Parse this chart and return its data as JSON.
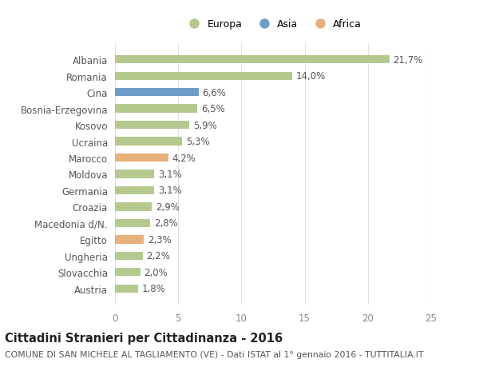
{
  "categories": [
    "Albania",
    "Romania",
    "Cina",
    "Bosnia-Erzegovina",
    "Kosovo",
    "Ucraina",
    "Marocco",
    "Moldova",
    "Germania",
    "Croazia",
    "Macedonia d/N.",
    "Egitto",
    "Ungheria",
    "Slovacchia",
    "Austria"
  ],
  "values": [
    21.7,
    14.0,
    6.6,
    6.5,
    5.9,
    5.3,
    4.2,
    3.1,
    3.1,
    2.9,
    2.8,
    2.3,
    2.2,
    2.0,
    1.8
  ],
  "labels": [
    "21,7%",
    "14,0%",
    "6,6%",
    "6,5%",
    "5,9%",
    "5,3%",
    "4,2%",
    "3,1%",
    "3,1%",
    "2,9%",
    "2,8%",
    "2,3%",
    "2,2%",
    "2,0%",
    "1,8%"
  ],
  "continents": [
    "Europa",
    "Europa",
    "Asia",
    "Europa",
    "Europa",
    "Europa",
    "Africa",
    "Europa",
    "Europa",
    "Europa",
    "Europa",
    "Africa",
    "Europa",
    "Europa",
    "Europa"
  ],
  "colors": {
    "Europa": "#b5c98e",
    "Asia": "#6e9ec7",
    "Africa": "#e8b07a"
  },
  "xlim": [
    0,
    25
  ],
  "xticks": [
    0,
    5,
    10,
    15,
    20,
    25
  ],
  "title_bold": "Cittadini Stranieri per Cittadinanza - 2016",
  "subtitle": "COMUNE DI SAN MICHELE AL TAGLIAMENTO (VE) - Dati ISTAT al 1° gennaio 2016 - TUTTITALIA.IT",
  "background_color": "#ffffff",
  "grid_color": "#e0e0e0",
  "bar_height": 0.5,
  "label_fontsize": 8.5,
  "tick_fontsize": 8.5,
  "ytick_fontsize": 8.5,
  "title_fontsize": 10.5,
  "subtitle_fontsize": 7.8,
  "legend_markersize": 10,
  "legend_fontsize": 9
}
